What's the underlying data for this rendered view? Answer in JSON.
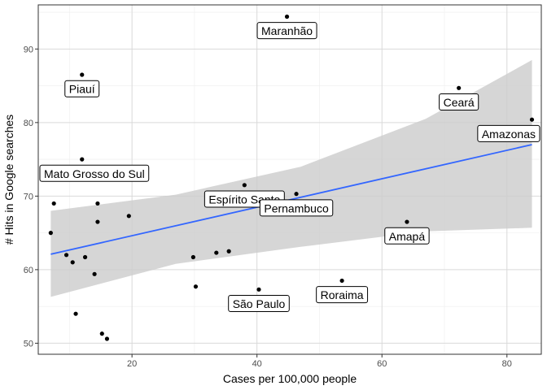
{
  "chart_data": {
    "type": "scatter",
    "title": "",
    "xlabel": "Cases per 100,000 people",
    "ylabel": "# Hits in Google searches",
    "xlim": [
      5,
      85.5
    ],
    "ylim": [
      48.5,
      96
    ],
    "x_ticks": [
      20,
      40,
      60,
      80
    ],
    "y_ticks": [
      50,
      60,
      70,
      80,
      90
    ],
    "grid": true,
    "legend": "none",
    "points": [
      {
        "x": 7.0,
        "y": 65.0
      },
      {
        "x": 7.5,
        "y": 69.0
      },
      {
        "x": 9.5,
        "y": 62.0
      },
      {
        "x": 10.5,
        "y": 61.0
      },
      {
        "x": 11.0,
        "y": 54.0
      },
      {
        "x": 12.0,
        "y": 86.5
      },
      {
        "x": 12.0,
        "y": 75.0
      },
      {
        "x": 12.5,
        "y": 61.7
      },
      {
        "x": 14.0,
        "y": 59.4
      },
      {
        "x": 14.5,
        "y": 69.0
      },
      {
        "x": 14.5,
        "y": 66.5
      },
      {
        "x": 15.2,
        "y": 51.3
      },
      {
        "x": 16.0,
        "y": 50.6
      },
      {
        "x": 19.5,
        "y": 67.3
      },
      {
        "x": 29.8,
        "y": 61.7
      },
      {
        "x": 30.2,
        "y": 57.7
      },
      {
        "x": 33.5,
        "y": 62.3
      },
      {
        "x": 35.5,
        "y": 62.5
      },
      {
        "x": 38.0,
        "y": 71.5
      },
      {
        "x": 40.3,
        "y": 57.3
      },
      {
        "x": 44.8,
        "y": 94.4
      },
      {
        "x": 46.3,
        "y": 70.3
      },
      {
        "x": 53.6,
        "y": 58.5
      },
      {
        "x": 64.0,
        "y": 66.5
      },
      {
        "x": 72.3,
        "y": 84.7
      },
      {
        "x": 84.0,
        "y": 80.4
      }
    ],
    "labels": [
      {
        "text": "Maranhão",
        "x": 44.8,
        "y": 92.5
      },
      {
        "text": "Piauí",
        "x": 12.0,
        "y": 84.6
      },
      {
        "text": "Ceará",
        "x": 72.3,
        "y": 82.8
      },
      {
        "text": "Amazonas",
        "x": 84.0,
        "y": 78.5
      },
      {
        "text": "Mato Grosso do Sul",
        "x": 12.0,
        "y": 73.1
      },
      {
        "text": "Espírito Santo",
        "x": 38.0,
        "y": 69.6
      },
      {
        "text": "Pernambuco",
        "x": 46.3,
        "y": 68.4
      },
      {
        "text": "Amapá",
        "x": 64.0,
        "y": 64.6
      },
      {
        "text": "São Paulo",
        "x": 40.3,
        "y": 55.4
      },
      {
        "text": "Roraima",
        "x": 53.6,
        "y": 56.6
      }
    ],
    "trend": {
      "method": "linear",
      "start": {
        "x": 7.0,
        "y": 62.1
      },
      "end": {
        "x": 84.0,
        "y": 77.0
      }
    },
    "confidence_band": {
      "upper": [
        {
          "x": 7.0,
          "y": 68.0
        },
        {
          "x": 27.0,
          "y": 70.2
        },
        {
          "x": 47.0,
          "y": 74.0
        },
        {
          "x": 67.0,
          "y": 80.5
        },
        {
          "x": 84.0,
          "y": 88.5
        }
      ],
      "lower": [
        {
          "x": 84.0,
          "y": 65.7
        },
        {
          "x": 67.0,
          "y": 65.2
        },
        {
          "x": 47.0,
          "y": 63.1
        },
        {
          "x": 27.0,
          "y": 60.8
        },
        {
          "x": 7.0,
          "y": 56.3
        }
      ]
    },
    "colors": {
      "panel_border": "#333333",
      "grid_major": "#d9d9d9",
      "grid_minor": "#eeeeee",
      "points": "#000000",
      "trend": "#3366ff",
      "band": "#cccccc",
      "label_border": "#000000",
      "label_fill": "#ffffff"
    }
  }
}
